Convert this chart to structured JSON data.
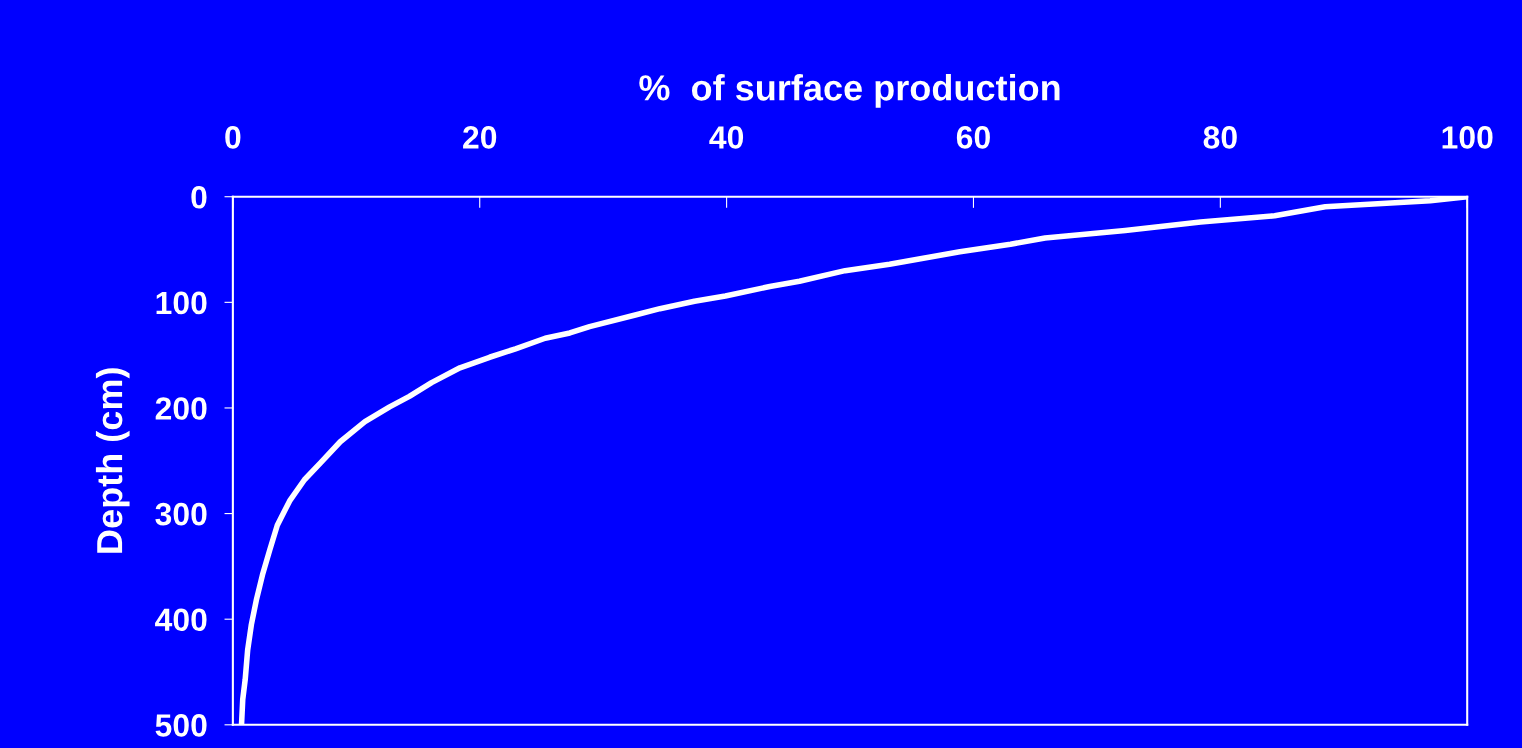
{
  "chart_data": {
    "type": "line",
    "xlabel": "%  of surface production",
    "ylabel": "Depth (cm)",
    "xlim": [
      0,
      100
    ],
    "xticks": [
      0,
      20,
      40,
      60,
      80,
      100
    ],
    "ylim": [
      500,
      0
    ],
    "yticks": [
      0,
      100,
      200,
      300,
      400,
      500
    ],
    "grid": false,
    "marker": "none",
    "line_style": "solid",
    "series": [
      {
        "color": "#ffffff",
        "x": [
          100,
          97.0,
          88.5,
          84.4,
          78.4,
          72.3,
          65.8,
          63.0,
          58.9,
          53.2,
          49.6,
          45.9,
          43.5,
          39.9,
          37.4,
          34.6,
          32.6,
          28.9,
          27.3,
          25.3,
          22.9,
          20.8,
          18.4,
          16.1,
          14.3,
          12.7,
          10.7,
          8.7,
          7.1,
          5.8,
          4.6,
          3.6,
          3.0,
          2.4,
          1.9,
          1.5,
          1.2,
          1.0,
          0.8,
          0.7
        ],
        "values": [
          0,
          3.8,
          9.5,
          18,
          24,
          32,
          39,
          45,
          52,
          64,
          70,
          80,
          85,
          94,
          99,
          106,
          112,
          123,
          129,
          134,
          144,
          152,
          162,
          176,
          189,
          199,
          213,
          232,
          252,
          268,
          288,
          311,
          334,
          358,
          382,
          405,
          429,
          457,
          476,
          500
        ]
      }
    ]
  }
}
